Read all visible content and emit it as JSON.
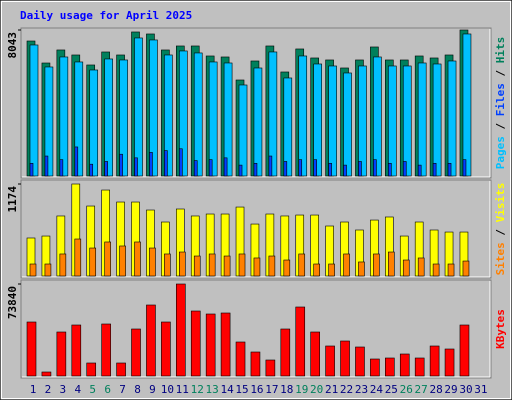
{
  "chart_data": [
    {
      "type": "bar",
      "title": "Daily usage for April 2025",
      "title_color": "#0000ff",
      "ylim": [
        0,
        8043
      ],
      "yticks": [
        8043
      ],
      "legend_separator": " / ",
      "series": [
        {
          "name": "Pages",
          "color": "#00c0ff",
          "values": [
            7218,
            6006,
            6557,
            6282,
            5840,
            6447,
            6392,
            7604,
            7494,
            6667,
            6888,
            6778,
            6282,
            6226,
            5014,
            5950,
            6833,
            5400,
            6612,
            6171,
            6061,
            5675,
            6061,
            6557,
            6061,
            6061,
            6226,
            6171,
            6336,
            7824,
            null
          ]
        },
        {
          "name": "Files",
          "color": "#0040ff",
          "values": [
            700,
            1100,
            900,
            1600,
            650,
            800,
            1200,
            1000,
            1300,
            1400,
            1500,
            850,
            900,
            1000,
            600,
            700,
            1100,
            800,
            900,
            900,
            700,
            600,
            800,
            900,
            700,
            800,
            600,
            700,
            700,
            900,
            null
          ]
        },
        {
          "name": "Hits",
          "color": "#00805c",
          "values": [
            7437,
            6225,
            6943,
            6667,
            6116,
            6832,
            6667,
            7934,
            7824,
            6943,
            7163,
            7163,
            6612,
            6557,
            5289,
            6336,
            7163,
            5730,
            6998,
            6502,
            6392,
            5951,
            6392,
            7108,
            6392,
            6392,
            6612,
            6502,
            6667,
            8043,
            null
          ]
        }
      ]
    },
    {
      "type": "bar",
      "ylim": [
        0,
        1174
      ],
      "yticks": [
        1174
      ],
      "legend_separator": " / ",
      "series": [
        {
          "name": "Sites",
          "color": "#ff8000",
          "values": [
            153,
            153,
            281,
            472,
            357,
            434,
            383,
            434,
            357,
            281,
            306,
            255,
            281,
            255,
            281,
            230,
            255,
            204,
            281,
            153,
            153,
            281,
            179,
            281,
            306,
            204,
            230,
            153,
            153,
            191,
            null
          ]
        },
        {
          "name": "Visits",
          "color": "#ffff00",
          "values": [
            485,
            510,
            766,
            1174,
            893,
            1097,
            944,
            944,
            842,
            689,
            855,
            766,
            791,
            791,
            880,
            663,
            791,
            766,
            778,
            778,
            638,
            689,
            587,
            714,
            753,
            510,
            689,
            587,
            561,
            561,
            null
          ]
        }
      ]
    },
    {
      "type": "bar",
      "ylim": [
        0,
        73840
      ],
      "yticks": [
        73840
      ],
      "categories": [
        "1",
        "2",
        "3",
        "4",
        "5",
        "6",
        "7",
        "8",
        "9",
        "10",
        "11",
        "12",
        "13",
        "14",
        "15",
        "16",
        "17",
        "18",
        "19",
        "20",
        "21",
        "22",
        "23",
        "24",
        "25",
        "26",
        "27",
        "28",
        "29",
        "30",
        "31"
      ],
      "label_colors": [
        "#000080",
        "#000080",
        "#000080",
        "#000080",
        "#00805c",
        "#00805c",
        "#000080",
        "#000080",
        "#000080",
        "#000080",
        "#000080",
        "#00805c",
        "#00805c",
        "#000080",
        "#000080",
        "#000080",
        "#000080",
        "#000080",
        "#00805c",
        "#00805c",
        "#000080",
        "#000080",
        "#000080",
        "#000080",
        "#000080",
        "#00805c",
        "#00805c",
        "#000080",
        "#000080",
        "#000080",
        "#000080"
      ],
      "series": [
        {
          "name": "KBytes",
          "color": "#ff0000",
          "values": [
            43340,
            3210,
            35314,
            40933,
            10434,
            41735,
            10434,
            37722,
            56985,
            43340,
            73840,
            52169,
            49761,
            50564,
            27288,
            19262,
            12842,
            37722,
            55379,
            35314,
            24078,
            28091,
            23275,
            13644,
            14447,
            17657,
            14447,
            24078,
            21670,
            40933,
            null
          ]
        }
      ]
    }
  ]
}
